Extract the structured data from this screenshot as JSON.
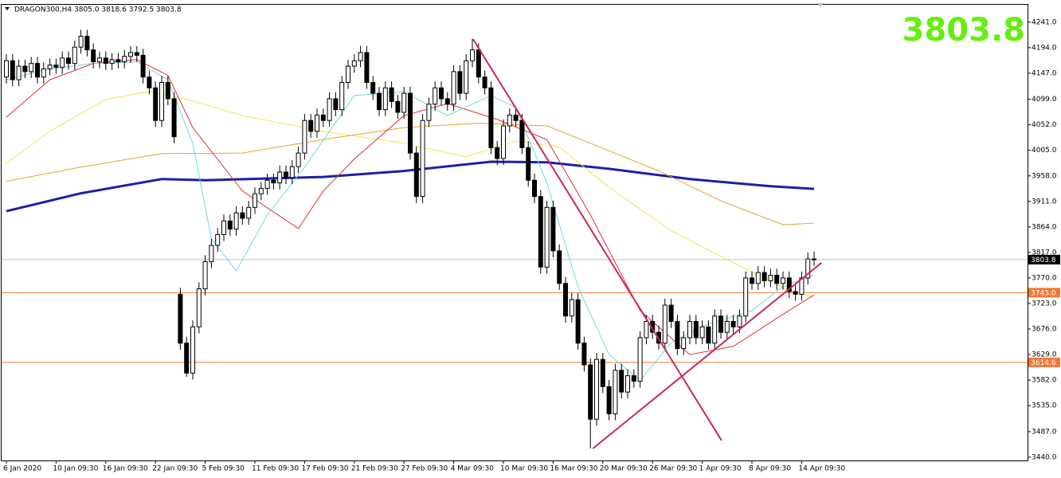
{
  "chart_data": {
    "type": "candlestick",
    "title": "DRAGON300,H4  3805.0 3818.6 3792.5 3803.8",
    "big_price": "3803.8",
    "big_price_color": "#66ee11",
    "bull_color": "#ffffff",
    "bear_color": "#000000",
    "categories": [
      "6 Jan 2020",
      null,
      null,
      null,
      null,
      null,
      null,
      null,
      "10 Jan 09:30",
      null,
      null,
      null,
      null,
      null,
      null,
      null,
      "16 Jan 09:30",
      null,
      null,
      null,
      null,
      null,
      null,
      null,
      "22 Jan 09:30",
      null,
      null,
      null,
      null,
      null,
      null,
      null,
      "5 Feb 09:30",
      null,
      null,
      null,
      null,
      null,
      null,
      null,
      "11 Feb 09:30",
      null,
      null,
      null,
      null,
      null,
      null,
      null,
      "17 Feb 09:30",
      null,
      null,
      null,
      null,
      null,
      null,
      null,
      "21 Feb 09:30",
      null,
      null,
      null,
      null,
      null,
      null,
      null,
      "27 Feb 09:30",
      null,
      null,
      null,
      null,
      null,
      null,
      null,
      "4 Mar 09:30",
      null,
      null,
      null,
      null,
      null,
      null,
      null,
      "10 Mar 09:30",
      null,
      null,
      null,
      null,
      null,
      null,
      null,
      "16 Mar 09:30",
      null,
      null,
      null,
      null,
      null,
      null,
      null,
      "20 Mar 09:30",
      null,
      null,
      null,
      null,
      null,
      null,
      null,
      "26 Mar 09:30",
      null,
      null,
      null,
      null,
      null,
      null,
      null,
      "1 Apr 09:30",
      null,
      null,
      null,
      null,
      null,
      null,
      null,
      "8 Apr 09:30",
      null,
      null,
      null,
      null,
      null,
      null,
      null,
      "14 Apr 09:30",
      null,
      null
    ],
    "open": [
      4140,
      4170,
      4135,
      4160,
      4150,
      4165,
      4140,
      4155,
      4162,
      4158,
      4175,
      4165,
      4195,
      4215,
      4190,
      4168,
      4175,
      4165,
      4172,
      4168,
      4178,
      4185,
      4180,
      4140,
      4120,
      4060,
      4130,
      4100,
      3740,
      3650,
      3595,
      3680,
      3750,
      3800,
      3830,
      3850,
      3875,
      3860,
      3890,
      3880,
      3900,
      3925,
      3935,
      3950,
      3945,
      3965,
      3955,
      3975,
      4000,
      4060,
      4040,
      4070,
      4060,
      4100,
      4080,
      4130,
      4160,
      4170,
      4185,
      4130,
      4110,
      4080,
      4120,
      4095,
      4075,
      4110,
      4000,
      3920,
      4060,
      4090,
      4120,
      4100,
      4090,
      4150,
      4110,
      4170,
      4190,
      4140,
      4120,
      4010,
      3990,
      4050,
      4070,
      4060,
      4010,
      3950,
      3920,
      3790,
      3900,
      3820,
      3760,
      3700,
      3730,
      3650,
      3610,
      3510,
      3620,
      3570,
      3520,
      3600,
      3560,
      3590,
      3580,
      3660,
      3690,
      3670,
      3650,
      3720,
      3690,
      3640,
      3660,
      3690,
      3660,
      3680,
      3650,
      3700,
      3670,
      3690,
      3680,
      3700,
      3770,
      3760,
      3780,
      3765,
      3775,
      3760,
      3770,
      3745,
      3740,
      3770,
      3805.0
    ],
    "high": [
      4182,
      4182,
      4172,
      4172,
      4177,
      4177,
      4167,
      4174,
      4174,
      4187,
      4187,
      4207,
      4227,
      4227,
      4202,
      4187,
      4187,
      4184,
      4184,
      4190,
      4197,
      4197,
      4192,
      4152,
      4132,
      4142,
      4142,
      4112,
      3752,
      3662,
      3692,
      3762,
      3812,
      3842,
      3862,
      3887,
      3887,
      3902,
      3902,
      3912,
      3937,
      3947,
      3962,
      3962,
      3977,
      3977,
      3987,
      4012,
      4072,
      4072,
      4082,
      4082,
      4112,
      4112,
      4142,
      4172,
      4182,
      4197,
      4197,
      4142,
      4122,
      4132,
      4132,
      4107,
      4122,
      4122,
      4012,
      4072,
      4102,
      4132,
      4132,
      4112,
      4162,
      4162,
      4182,
      4210,
      4202,
      4152,
      4132,
      4022,
      4062,
      4082,
      4082,
      4072,
      4022,
      3962,
      3932,
      3912,
      3912,
      3832,
      3772,
      3742,
      3742,
      3662,
      3622,
      3632,
      3632,
      3582,
      3612,
      3612,
      3602,
      3602,
      3672,
      3702,
      3702,
      3682,
      3732,
      3732,
      3702,
      3672,
      3702,
      3702,
      3692,
      3692,
      3712,
      3712,
      3702,
      3702,
      3712,
      3782,
      3782,
      3792,
      3792,
      3787,
      3787,
      3782,
      3782,
      3757,
      3782,
      3817,
      3818.6
    ],
    "low": [
      4128,
      4123,
      4123,
      4138,
      4138,
      4128,
      4128,
      4143,
      4146,
      4146,
      4153,
      4153,
      4183,
      4178,
      4156,
      4156,
      4153,
      4153,
      4156,
      4156,
      4166,
      4168,
      4128,
      4108,
      4048,
      4048,
      4088,
      4018,
      3638,
      3588,
      3583,
      3668,
      3738,
      3788,
      3818,
      3838,
      3848,
      3848,
      3868,
      3868,
      3888,
      3913,
      3923,
      3933,
      3933,
      3943,
      3943,
      3963,
      3988,
      4028,
      4028,
      4048,
      4048,
      4068,
      4068,
      4118,
      4148,
      4158,
      4118,
      4098,
      4068,
      4068,
      4083,
      4063,
      4063,
      3988,
      3908,
      3908,
      4048,
      4078,
      4088,
      4078,
      4078,
      4098,
      4098,
      4158,
      4128,
      4108,
      3998,
      3978,
      3978,
      4038,
      4048,
      3998,
      3938,
      3908,
      3778,
      3778,
      3808,
      3748,
      3688,
      3688,
      3638,
      3598,
      3456,
      3498,
      3558,
      3508,
      3508,
      3548,
      3548,
      3568,
      3568,
      3648,
      3658,
      3638,
      3638,
      3678,
      3628,
      3628,
      3648,
      3648,
      3648,
      3638,
      3638,
      3658,
      3658,
      3668,
      3668,
      3688,
      3748,
      3748,
      3753,
      3753,
      3748,
      3748,
      3733,
      3728,
      3728,
      3758,
      3792.5
    ],
    "close": [
      4170,
      4135,
      4160,
      4150,
      4165,
      4140,
      4155,
      4162,
      4158,
      4175,
      4165,
      4195,
      4215,
      4190,
      4168,
      4175,
      4165,
      4172,
      4168,
      4178,
      4185,
      4180,
      4140,
      4120,
      4060,
      4130,
      4100,
      4030,
      3650,
      3595,
      3680,
      3750,
      3800,
      3830,
      3850,
      3875,
      3860,
      3890,
      3880,
      3900,
      3925,
      3935,
      3950,
      3945,
      3965,
      3955,
      3975,
      4000,
      4060,
      4040,
      4070,
      4060,
      4100,
      4080,
      4130,
      4160,
      4170,
      4185,
      4130,
      4110,
      4080,
      4120,
      4095,
      4075,
      4110,
      4000,
      3920,
      4060,
      4090,
      4120,
      4100,
      4090,
      4150,
      4110,
      4170,
      4190,
      4140,
      4120,
      4010,
      3990,
      4050,
      4070,
      4060,
      4010,
      3950,
      3920,
      3790,
      3900,
      3820,
      3760,
      3700,
      3730,
      3650,
      3610,
      3510,
      3620,
      3570,
      3520,
      3600,
      3560,
      3590,
      3580,
      3660,
      3690,
      3670,
      3650,
      3720,
      3690,
      3640,
      3660,
      3690,
      3660,
      3680,
      3650,
      3700,
      3670,
      3690,
      3680,
      3700,
      3770,
      3760,
      3780,
      3765,
      3775,
      3760,
      3770,
      3745,
      3740,
      3770,
      3805,
      3803.8
    ],
    "overlays": [
      {
        "color": "#1e1ea8",
        "width": 3,
        "x": [
          0,
          12,
          25,
          32,
          51,
          64,
          78,
          87,
          97,
          110,
          123,
          130
        ],
        "values": [
          3893,
          3926,
          3952,
          3950,
          3956,
          3967,
          3984,
          3983,
          3971,
          3952,
          3939,
          3934
        ]
      },
      {
        "color": "#f2e650",
        "width": 1,
        "x": [
          0,
          7,
          16,
          23,
          29,
          38,
          51,
          64,
          74,
          82,
          89,
          97,
          107,
          117,
          126,
          130
        ],
        "values": [
          3981,
          4040,
          4099,
          4113,
          4099,
          4069,
          4040,
          4018,
          3993,
          4022,
          4011,
          3937,
          3857,
          3798,
          3747,
          3735
        ]
      },
      {
        "color": "#e8a030",
        "width": 1,
        "x": [
          0,
          12,
          25,
          38,
          51,
          64,
          76,
          87,
          94,
          105,
          115,
          125,
          130
        ],
        "values": [
          3948,
          3974,
          3999,
          4000,
          4025,
          4047,
          4055,
          4050,
          4018,
          3967,
          3912,
          3868,
          3871
        ]
      },
      {
        "color": "#e03030",
        "width": 1,
        "x": [
          0,
          7,
          14,
          21,
          26,
          30,
          38,
          47,
          51,
          56,
          64,
          71,
          79,
          87,
          94,
          102,
          110,
          117,
          125,
          130
        ],
        "values": [
          4066,
          4135,
          4165,
          4172,
          4143,
          4047,
          3930,
          3861,
          3930,
          3989,
          4069,
          4091,
          4062,
          4025,
          3886,
          3710,
          3629,
          3644,
          3703,
          3739
        ]
      },
      {
        "color": "#70d8e0",
        "width": 1,
        "x": [
          0,
          6,
          14,
          21,
          26,
          30,
          33,
          37,
          42,
          48,
          56,
          64,
          71,
          78,
          82,
          87,
          92,
          97,
          102,
          107,
          112,
          120,
          125,
          130
        ],
        "values": [
          4135,
          4153,
          4165,
          4168,
          4135,
          4018,
          3842,
          3783,
          3886,
          3974,
          4106,
          4113,
          4069,
          4106,
          4084,
          3945,
          3754,
          3629,
          3581,
          3651,
          3681,
          3710,
          3754,
          3776
        ]
      }
    ],
    "trendlines": [
      {
        "color": "#c8285a",
        "x": [
          75.1,
          115.1
        ],
        "values": [
          4210,
          3471
        ]
      },
      {
        "color": "#c8285a",
        "x": [
          94.4,
          131.2
        ],
        "values": [
          3456,
          3798
        ]
      }
    ],
    "levels": [
      {
        "value": 3803.8,
        "label": "3803.8",
        "color": "#c0c0c0",
        "box": "#000000",
        "text": "#ffffff"
      },
      {
        "value": 3743.0,
        "label": "3743.0",
        "color": "#f07838",
        "box": "#f07838",
        "text": "#ffffff"
      },
      {
        "value": 3614.6,
        "label": "3614.6",
        "color": "#f07838",
        "box": "#f07838",
        "text": "#ffffff"
      }
    ],
    "ylim": [
      3434,
      4273
    ],
    "yticks": [
      {
        "value": 4241,
        "label": "4241.0"
      },
      {
        "value": 4194,
        "label": "4194.0"
      },
      {
        "value": 4147,
        "label": "4147.0"
      },
      {
        "value": 4099,
        "label": "4099.0"
      },
      {
        "value": 4052,
        "label": "4052.0"
      },
      {
        "value": 4005,
        "label": "4005.0"
      },
      {
        "value": 3958,
        "label": "3958.0"
      },
      {
        "value": 3911,
        "label": "3911.0"
      },
      {
        "value": 3864,
        "label": "3864.0"
      },
      {
        "value": 3817,
        "label": "3817.0"
      },
      {
        "value": 3770,
        "label": "3770.0"
      },
      {
        "value": 3723,
        "label": "3723.0"
      },
      {
        "value": 3676,
        "label": "3676.0"
      },
      {
        "value": 3629,
        "label": "3629.0"
      },
      {
        "value": 3582,
        "label": "3582.0"
      },
      {
        "value": 3535,
        "label": "3535.0"
      },
      {
        "value": 3487,
        "label": "3487.0"
      },
      {
        "value": 3440,
        "label": "3440.0"
      }
    ],
    "grid": false
  }
}
